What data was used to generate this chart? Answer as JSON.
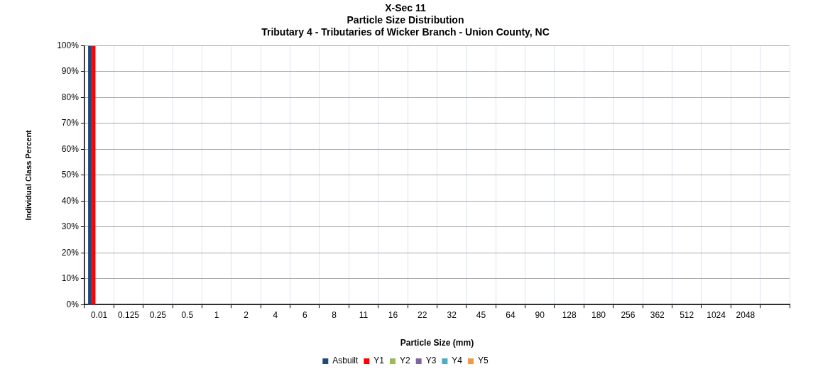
{
  "chart_data": {
    "type": "bar",
    "title": "X-Sec 11\nParticle Size Distribution\nTributary 4 - Tributaries of Wicker Branch - Union County, NC",
    "xlabel": "Particle Size (mm)",
    "ylabel": "Individual Class Percent",
    "categories": [
      "0.01",
      "0.125",
      "0.25",
      "0.5",
      "1",
      "2",
      "4",
      "6",
      "8",
      "11",
      "16",
      "22",
      "32",
      "45",
      "64",
      "90",
      "128",
      "180",
      "256",
      "362",
      "512",
      "1024",
      "2048",
      null
    ],
    "series": [
      {
        "name": "Asbuilt",
        "color": "#1f497d",
        "values": [
          100,
          0,
          0,
          0,
          0,
          0,
          0,
          0,
          0,
          0,
          0,
          0,
          0,
          0,
          0,
          0,
          0,
          0,
          0,
          0,
          0,
          0,
          0,
          0
        ]
      },
      {
        "name": "Y1",
        "color": "#ff0000",
        "values": [
          100,
          0,
          0,
          0,
          0,
          0,
          0,
          0,
          0,
          0,
          0,
          0,
          0,
          0,
          0,
          0,
          0,
          0,
          0,
          0,
          0,
          0,
          0,
          0
        ]
      },
      {
        "name": "Y2",
        "color": "#9bbb59",
        "values": [
          0,
          0,
          0,
          0,
          0,
          0,
          0,
          0,
          0,
          0,
          0,
          0,
          0,
          0,
          0,
          0,
          0,
          0,
          0,
          0,
          0,
          0,
          0,
          0
        ]
      },
      {
        "name": "Y3",
        "color": "#8064a2",
        "values": [
          0,
          0,
          0,
          0,
          0,
          0,
          0,
          0,
          0,
          0,
          0,
          0,
          0,
          0,
          0,
          0,
          0,
          0,
          0,
          0,
          0,
          0,
          0,
          0
        ]
      },
      {
        "name": "Y4",
        "color": "#4bacc6",
        "values": [
          0,
          0,
          0,
          0,
          0,
          0,
          0,
          0,
          0,
          0,
          0,
          0,
          0,
          0,
          0,
          0,
          0,
          0,
          0,
          0,
          0,
          0,
          0,
          0
        ]
      },
      {
        "name": "Y5",
        "color": "#f79646",
        "values": [
          0,
          0,
          0,
          0,
          0,
          0,
          0,
          0,
          0,
          0,
          0,
          0,
          0,
          0,
          0,
          0,
          0,
          0,
          0,
          0,
          0,
          0,
          0,
          0
        ]
      }
    ],
    "ylim": [
      0,
      100
    ],
    "yticks": [
      {
        "value": 0,
        "label": "0%"
      },
      {
        "value": 10,
        "label": "10%"
      },
      {
        "value": 20,
        "label": "20%"
      },
      {
        "value": 30,
        "label": "30%"
      },
      {
        "value": 40,
        "label": "40%"
      },
      {
        "value": 50,
        "label": "50%"
      },
      {
        "value": 60,
        "label": "60%"
      },
      {
        "value": 70,
        "label": "70%"
      },
      {
        "value": 80,
        "label": "80%"
      },
      {
        "value": 90,
        "label": "90%"
      },
      {
        "value": 100,
        "label": "100%"
      }
    ],
    "grid": true,
    "legend": "bottom"
  }
}
